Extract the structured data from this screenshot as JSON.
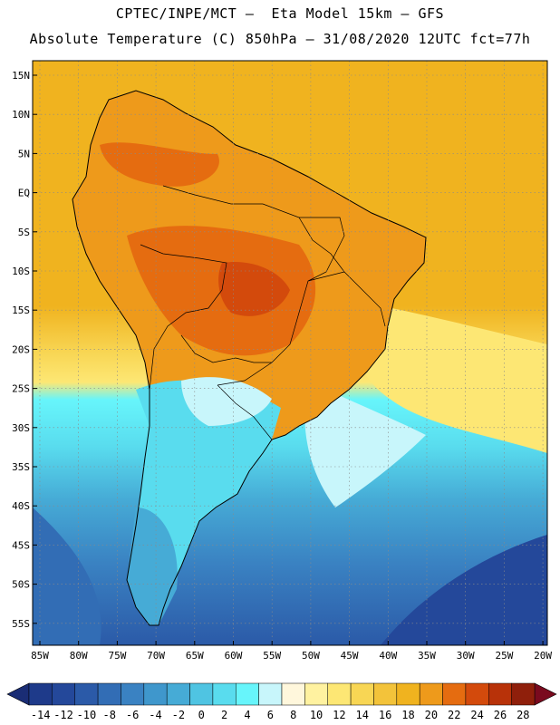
{
  "header": {
    "line1": "CPTEC/INPE/MCT –  Eta Model 15km – GFS",
    "line2": "Absolute Temperature (C) 850hPa – 31/08/2020 12UTC fct=77h"
  },
  "axes": {
    "lat_labels": [
      "15N",
      "10N",
      "5N",
      "EQ",
      "5S",
      "10S",
      "15S",
      "20S",
      "25S",
      "30S",
      "35S",
      "40S",
      "45S",
      "50S",
      "55S"
    ],
    "lon_labels": [
      "85W",
      "80W",
      "75W",
      "70W",
      "65W",
      "60W",
      "55W",
      "50W",
      "45W",
      "40W",
      "35W",
      "30W",
      "25W",
      "20W"
    ]
  },
  "colorbar": {
    "labels": [
      "-14",
      "-12",
      "-10",
      "-8",
      "-6",
      "-4",
      "-2",
      "0",
      "2",
      "4",
      "6",
      "8",
      "10",
      "12",
      "14",
      "16",
      "18",
      "20",
      "22",
      "24",
      "26",
      "28"
    ],
    "colors": [
      "#1e3a8a",
      "#24489a",
      "#2b5aa8",
      "#326db5",
      "#3a82c2",
      "#3f97cc",
      "#46abd6",
      "#4fc4e2",
      "#59dcee",
      "#67f5fb",
      "#c8f6fb",
      "#fff7dc",
      "#fff2a0",
      "#fde774",
      "#f8d654",
      "#f3c33a",
      "#f0b31f",
      "#ee9a1b",
      "#e56c10",
      "#d34a0c",
      "#b83209",
      "#8f1f0b"
    ],
    "under_color": "#1a2d75",
    "over_color": "#7a0a1e"
  }
}
